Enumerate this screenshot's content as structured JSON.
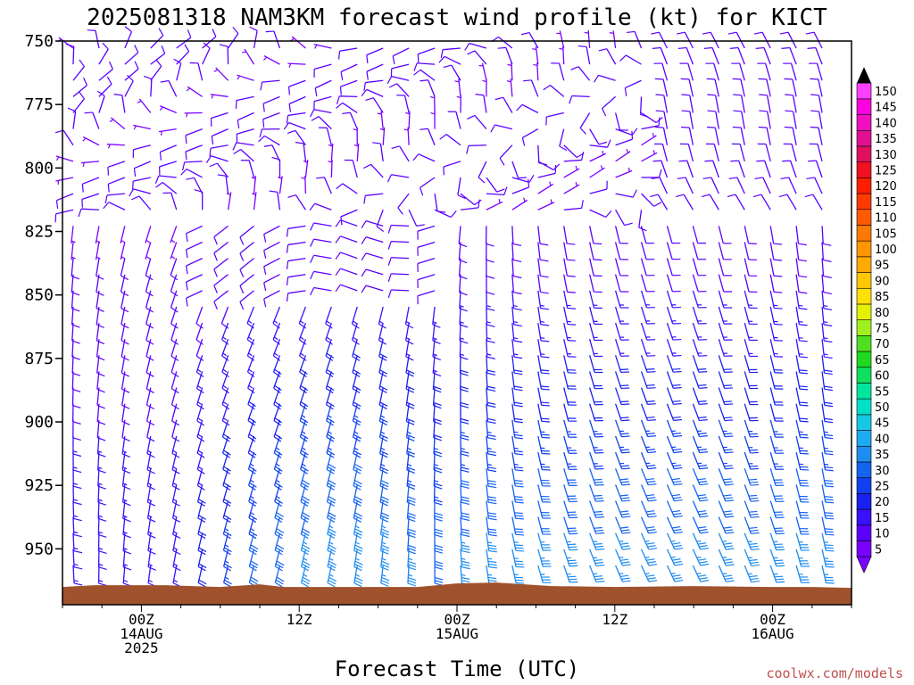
{
  "chart_data": {
    "type": "wind_barb_time_height",
    "title": "2025081318 NAM3KM forecast wind profile (kt) for KICT",
    "xlabel": "Forecast Time (UTC)",
    "ylabel": "",
    "y_axis": {
      "type": "pressure",
      "ticks": [
        "750",
        "775",
        "800",
        "825",
        "850",
        "875",
        "900",
        "925",
        "950"
      ],
      "ylim": [
        750,
        972
      ],
      "inverted": true
    },
    "x_axis": {
      "ticks": [
        {
          "line1": "00Z",
          "line2": "14AUG",
          "line3": "2025",
          "hours_from_init": 6
        },
        {
          "line1": "12Z",
          "line2": "",
          "line3": "",
          "hours_from_init": 18
        },
        {
          "line1": "00Z",
          "line2": "15AUG",
          "line3": "",
          "hours_from_init": 30
        },
        {
          "line1": "12Z",
          "line2": "",
          "line3": "",
          "hours_from_init": 42
        },
        {
          "line1": "00Z",
          "line2": "16AUG",
          "line3": "",
          "hours_from_init": 54
        }
      ],
      "range_hours_from_init": [
        0,
        60
      ]
    },
    "colorbar": {
      "units": "kt",
      "labels": [
        "5",
        "10",
        "15",
        "20",
        "25",
        "30",
        "35",
        "40",
        "45",
        "50",
        "55",
        "60",
        "65",
        "70",
        "75",
        "80",
        "85",
        "90",
        "95",
        "100",
        "105",
        "110",
        "115",
        "120",
        "125",
        "130",
        "135",
        "140",
        "145",
        "150"
      ],
      "colors": [
        "#7a00ff",
        "#5a00ff",
        "#3a10ff",
        "#1a20ee",
        "#1040f0",
        "#1464f0",
        "#1e8cf0",
        "#1eaaf0",
        "#14c8e6",
        "#00e0c8",
        "#00e6a0",
        "#10e060",
        "#20d820",
        "#50e020",
        "#a0f020",
        "#e6f000",
        "#ffe000",
        "#ffc800",
        "#ffaa00",
        "#ff9600",
        "#ff7800",
        "#ff5a00",
        "#ff3a00",
        "#ff1e00",
        "#f01020",
        "#e01060",
        "#e01090",
        "#f010c0",
        "#ff00e0",
        "#ff40ff"
      ]
    },
    "surface_terrain": {
      "color": "#a0522d",
      "approx_surface_pressure": 965
    },
    "wind_field_summary": "Light (5-10 kt) variable winds aloft near 750-850 mb; southerly 15-35 kt winds in the 875-950 mb layer during 15AUG-16AUG; north/northwest flow late in the period above 800 mb."
  },
  "credit": "coolwx.com/models"
}
